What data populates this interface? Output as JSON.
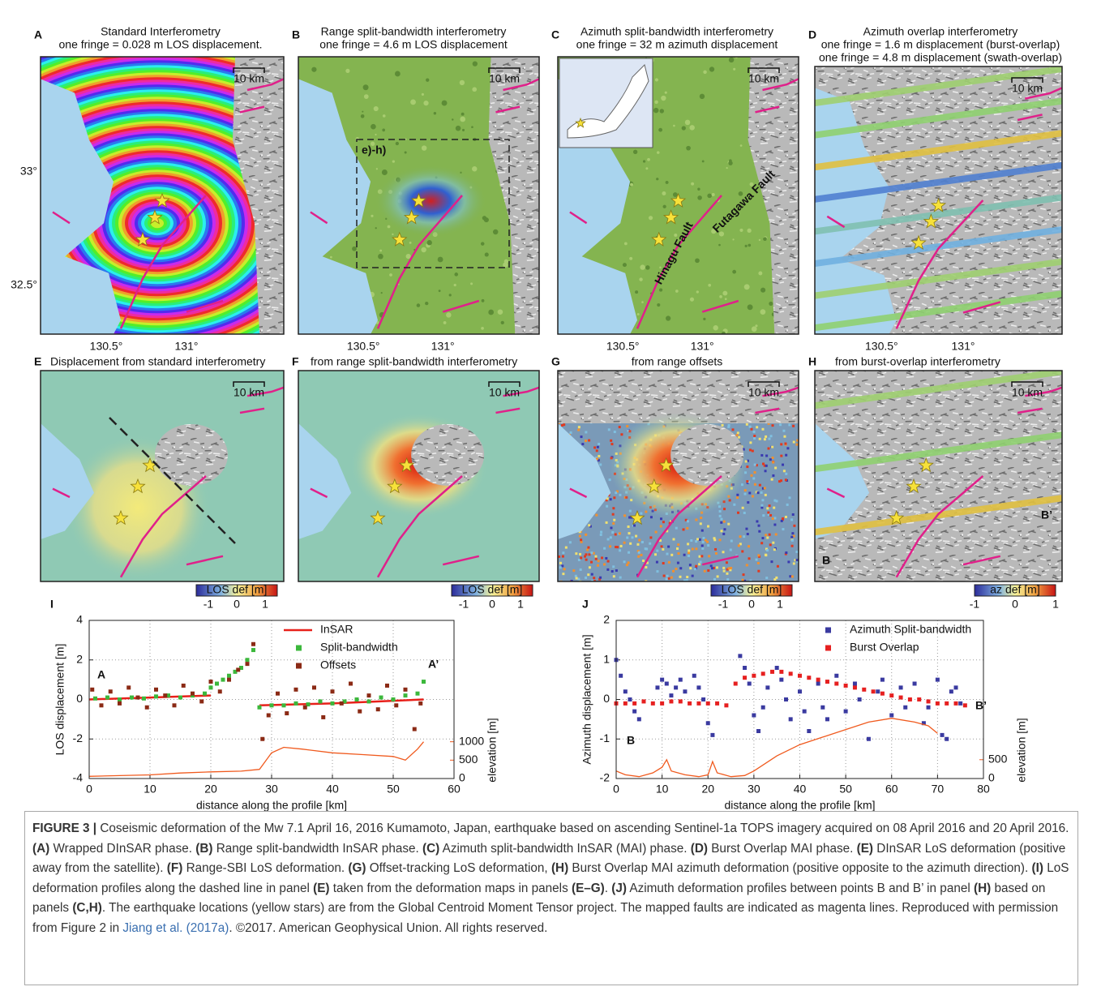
{
  "figure": {
    "panels": [
      {
        "letter": "A",
        "title": [
          "Standard Interferometry",
          "one fringe = 0.028 m LOS displacement."
        ]
      },
      {
        "letter": "B",
        "title": [
          "Range split-bandwidth interferometry",
          "one fringe  = 4.6 m LOS displacement"
        ]
      },
      {
        "letter": "C",
        "title": [
          "Azimuth split-bandwidth interferometry",
          "one fringe = 32 m azimuth displacement"
        ]
      },
      {
        "letter": "D",
        "title": [
          "Azimuth overlap interferometry",
          "one fringe  = 1.6 m displacement (burst-overlap)",
          "one fringe  = 4.8 m displacement (swath-overlap)"
        ]
      },
      {
        "letter": "E",
        "title": [
          "Displacement from standard interferometry"
        ],
        "colorbar": {
          "label": "LOS def [m]",
          "ticks": [
            "-1",
            "0",
            "1"
          ]
        }
      },
      {
        "letter": "F",
        "title": [
          "from range split-bandwidth interferometry"
        ],
        "colorbar": {
          "label": "LOS def [m]",
          "ticks": [
            "-1",
            "0",
            "1"
          ]
        }
      },
      {
        "letter": "G",
        "title": [
          "from range offsets"
        ],
        "colorbar": {
          "label": "LOS def [m]",
          "ticks": [
            "-1",
            "0",
            "1"
          ]
        }
      },
      {
        "letter": "H",
        "title": [
          "from burst-overlap interferometry"
        ],
        "colorbar": {
          "label": "az def [m]",
          "ticks": [
            "-1",
            "0",
            "1"
          ]
        }
      },
      {
        "letter": "I"
      },
      {
        "letter": "J"
      }
    ],
    "scale_bar": "10 km",
    "lon_ticks": [
      "130.5°",
      "131°"
    ],
    "lat_ticks": [
      "33°",
      "32.5°"
    ],
    "map_labels": {
      "box": "e)-h)",
      "fault_1": "Hinagu Fault",
      "fault_2": "Futagawa Fault",
      "profile_start": "B",
      "profile_end": "B’"
    }
  },
  "chart_data": [
    {
      "type": "scatter",
      "xlabel": "distance along the profile [km]",
      "ylabel": "LOS displacement [m]",
      "y2label": "elevation [m]",
      "xlim": [
        0,
        60
      ],
      "xticks": [
        0,
        10,
        20,
        30,
        40,
        50,
        60
      ],
      "ylim": [
        -4,
        4
      ],
      "yticks": [
        -4,
        -2,
        0,
        2,
        4
      ],
      "y2lim": [
        0,
        4300
      ],
      "y2ticks": [
        0,
        500,
        1000
      ],
      "grid": true,
      "legend": "upper right",
      "annotations": [
        "A",
        "A’"
      ],
      "series": [
        {
          "name": "InSAR",
          "color": "#e8201a",
          "mode": "line",
          "x": [
            0,
            10,
            20,
            24,
            28,
            40,
            55
          ],
          "values": [
            0,
            0.1,
            0.2,
            null,
            -0.3,
            -0.2,
            0
          ]
        },
        {
          "name": "Split-bandwidth",
          "color": "#3cb83c",
          "mode": "markers",
          "x": [
            1,
            3,
            5,
            7,
            9,
            11,
            13,
            15,
            17,
            19,
            20,
            21,
            22,
            23,
            24,
            25,
            26,
            27,
            28,
            30,
            32,
            34,
            36,
            38,
            40,
            42,
            44,
            46,
            48,
            50,
            52,
            54,
            55
          ],
          "values": [
            0.05,
            0.1,
            0,
            0.1,
            0.05,
            0.15,
            0.2,
            0.1,
            0.2,
            0.3,
            0.6,
            0.8,
            1.0,
            1.2,
            1.4,
            1.6,
            2.0,
            2.5,
            -0.4,
            -0.3,
            -0.3,
            -0.2,
            -0.25,
            -0.1,
            -0.2,
            -0.1,
            0,
            -0.1,
            0.1,
            0,
            0.2,
            0.3,
            0.9
          ]
        },
        {
          "name": "Offsets",
          "color": "#8b2a15",
          "mode": "markers",
          "x": [
            0.5,
            2,
            3.5,
            5,
            6.5,
            8,
            9.5,
            11,
            12.5,
            14,
            15.5,
            17,
            18.5,
            20,
            21.5,
            23,
            24.5,
            26,
            27,
            28.5,
            29.5,
            31,
            32.5,
            34,
            35.5,
            37,
            38.5,
            40,
            41.5,
            43,
            44.5,
            46,
            47.5,
            49,
            50.5,
            52,
            53.5,
            54.5
          ],
          "values": [
            0.5,
            -0.3,
            0.4,
            -0.2,
            0.6,
            0.1,
            -0.4,
            0.5,
            0.2,
            -0.3,
            0.7,
            0.3,
            -0.1,
            0.9,
            0.4,
            1.0,
            1.5,
            1.8,
            2.8,
            -2.0,
            -0.8,
            0.3,
            -0.7,
            0.5,
            -0.4,
            0.6,
            -0.9,
            0.4,
            -0.2,
            0.8,
            -0.6,
            0.2,
            -0.5,
            0.7,
            -0.3,
            0.5,
            -1.5,
            -0.2
          ]
        },
        {
          "color": "#f05a1e",
          "mode": "line",
          "axis": "y2",
          "x": [
            0,
            5,
            10,
            15,
            20,
            25,
            28,
            30,
            32,
            35,
            40,
            45,
            50,
            52,
            54,
            55
          ],
          "values": [
            60,
            80,
            100,
            150,
            180,
            200,
            250,
            700,
            850,
            800,
            700,
            650,
            600,
            500,
            800,
            1000
          ]
        }
      ]
    },
    {
      "type": "scatter",
      "xlabel": "distance along the profile [km]",
      "ylabel": "Azimuth displacement [m]",
      "y2label": "elevation [m]",
      "xlim": [
        0,
        80
      ],
      "xticks": [
        0,
        10,
        20,
        30,
        40,
        50,
        60,
        70,
        80
      ],
      "ylim": [
        -2,
        2
      ],
      "yticks": [
        -2,
        -1,
        0,
        1,
        2
      ],
      "y2lim": [
        0,
        4200
      ],
      "y2ticks": [
        0,
        500
      ],
      "grid": true,
      "legend": "upper right",
      "annotations": [
        "B",
        "B’"
      ],
      "series": [
        {
          "name": "Azimuth Split-bandwidth",
          "color": "#3a3aa0",
          "mode": "markers",
          "x": [
            0,
            1,
            2,
            3,
            4,
            5,
            9,
            10,
            11,
            12,
            13,
            14,
            15,
            17,
            18,
            19,
            20,
            21,
            27,
            28,
            29,
            30,
            31,
            32,
            33,
            35,
            36,
            37,
            38,
            40,
            41,
            42,
            44,
            45,
            46,
            48,
            50,
            52,
            53,
            55,
            57,
            58,
            60,
            62,
            63,
            65,
            67,
            68,
            70,
            71,
            72,
            73,
            74,
            75
          ],
          "values": [
            1.0,
            0.6,
            0.2,
            0,
            -0.3,
            -0.5,
            0.3,
            0.5,
            0.4,
            0.1,
            0.3,
            0.5,
            0.2,
            0.6,
            0.3,
            0,
            -0.6,
            -0.9,
            1.1,
            0.8,
            0.4,
            -0.4,
            -0.8,
            -0.2,
            0.3,
            0.8,
            0.5,
            0,
            -0.5,
            0.2,
            -0.3,
            -0.8,
            0.4,
            -0.2,
            -0.5,
            0.6,
            -0.3,
            0.4,
            0,
            -1.0,
            0.2,
            0.5,
            -0.4,
            0.3,
            -0.2,
            0.4,
            -0.6,
            -0.2,
            0.5,
            -0.9,
            -1.0,
            0.2,
            0.3,
            -0.1
          ]
        },
        {
          "name": "Burst Overlap",
          "color": "#e62020",
          "mode": "markers",
          "x": [
            0,
            2,
            4,
            6,
            8,
            10,
            12,
            14,
            16,
            18,
            20,
            22,
            24,
            26,
            28,
            30,
            32,
            34,
            36,
            38,
            40,
            42,
            44,
            46,
            48,
            50,
            52,
            54,
            56,
            58,
            60,
            62,
            64,
            66,
            68,
            70,
            72,
            74,
            76
          ],
          "values": [
            -0.1,
            -0.1,
            -0.1,
            -0.05,
            -0.1,
            -0.1,
            -0.05,
            -0.05,
            -0.1,
            -0.1,
            -0.1,
            -0.1,
            -0.15,
            0.4,
            0.55,
            0.6,
            0.65,
            0.7,
            0.7,
            0.65,
            0.6,
            0.55,
            0.5,
            0.45,
            0.4,
            0.35,
            0.3,
            0.25,
            0.2,
            0.15,
            0.1,
            0.05,
            0,
            0,
            -0.05,
            -0.1,
            -0.1,
            -0.1,
            -0.15
          ]
        },
        {
          "color": "#f05a1e",
          "mode": "line",
          "axis": "y2",
          "x": [
            0,
            2,
            5,
            8,
            10,
            11,
            12,
            15,
            18,
            20,
            21,
            22,
            25,
            28,
            30,
            35,
            40,
            45,
            50,
            55,
            60,
            65,
            68,
            70
          ],
          "values": [
            200,
            100,
            50,
            150,
            300,
            500,
            200,
            100,
            50,
            100,
            450,
            150,
            50,
            80,
            200,
            600,
            900,
            1100,
            1300,
            1500,
            1600,
            1500,
            1400,
            1200
          ]
        }
      ]
    }
  ],
  "caption": {
    "segments": [
      {
        "text": "FIGURE 3 |",
        "style": "bold"
      },
      {
        "text": " Coseismic deformation of the Mw 7.1 April 16, 2016 Kumamoto, Japan, earthquake based on ascending Sentinel-1a TOPS imagery acquired on 08 April 2016 and 20 April 2016. "
      },
      {
        "text": "(A)",
        "style": "bold"
      },
      {
        "text": " Wrapped DInSAR phase. "
      },
      {
        "text": "(B)",
        "style": "bold"
      },
      {
        "text": " Range split-bandwidth InSAR phase. "
      },
      {
        "text": "(C)",
        "style": "bold"
      },
      {
        "text": " Azimuth split-bandwidth InSAR (MAI) phase. "
      },
      {
        "text": "(D)",
        "style": "bold"
      },
      {
        "text": " Burst Overlap MAI phase. "
      },
      {
        "text": "(E)",
        "style": "bold"
      },
      {
        "text": " DInSAR LoS deformation (positive away from the satellite). "
      },
      {
        "text": "(F)",
        "style": "bold"
      },
      {
        "text": " Range-SBI LoS deformation. "
      },
      {
        "text": "(G)",
        "style": "bold"
      },
      {
        "text": " Offset-tracking LoS deformation, "
      },
      {
        "text": "(H)",
        "style": "bold"
      },
      {
        "text": " Burst Overlap MAI azimuth deformation (positive opposite to the azimuth direction). "
      },
      {
        "text": "(I)",
        "style": "bold"
      },
      {
        "text": " LoS deformation profiles along the dashed line in panel "
      },
      {
        "text": "(E)",
        "style": "bold"
      },
      {
        "text": " taken from the deformation maps in panels "
      },
      {
        "text": "(E–G)",
        "style": "bold"
      },
      {
        "text": ". "
      },
      {
        "text": "(J)",
        "style": "bold"
      },
      {
        "text": " Azimuth deformation profiles between points B and B’ in panel "
      },
      {
        "text": "(H)",
        "style": "bold"
      },
      {
        "text": " based on panels "
      },
      {
        "text": "(C,H)",
        "style": "bold"
      },
      {
        "text": ". The earthquake locations (yellow stars) are from the Global Centroid Moment Tensor project. The mapped faults are indicated as magenta lines. Reproduced with permission from Figure 2 in "
      },
      {
        "text": "Jiang et al. (2017a)",
        "style": "link"
      },
      {
        "text": ". ©2017. American Geophysical Union. All rights reserved."
      }
    ]
  }
}
